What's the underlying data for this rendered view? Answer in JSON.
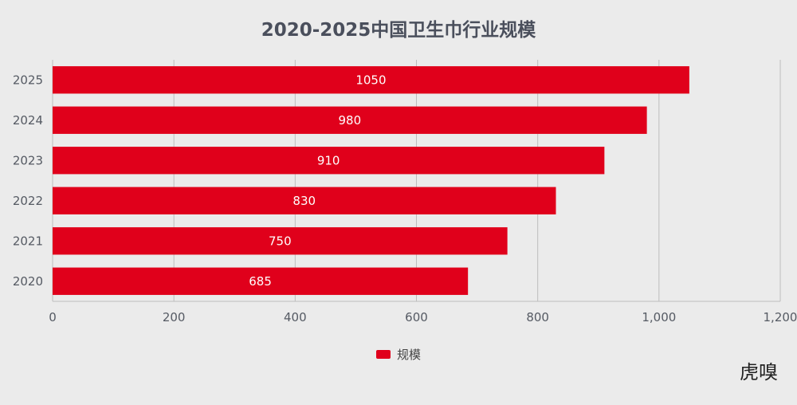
{
  "chart_data": {
    "type": "bar",
    "orientation": "horizontal",
    "title": "2020-2025中国卫生巾行业规模",
    "categories": [
      "2025",
      "2024",
      "2023",
      "2022",
      "2021",
      "2020"
    ],
    "series": [
      {
        "name": "规模",
        "values": [
          1050,
          980,
          910,
          830,
          750,
          685
        ],
        "color": "#e0001b"
      }
    ],
    "data_labels": [
      "1050",
      "980",
      "910",
      "830",
      "750",
      "685"
    ],
    "xlim": [
      0,
      1200
    ],
    "xticks": [
      0,
      200,
      400,
      600,
      800,
      1000,
      1200
    ],
    "xtick_labels": [
      "0",
      "200",
      "400",
      "600",
      "800",
      "1,000",
      "1,200"
    ],
    "xlabel": "",
    "ylabel": "",
    "grid": true,
    "legend_position": "bottom"
  },
  "watermark": "虎嗅",
  "colors": {
    "background": "#ebebeb",
    "bar": "#e0001b",
    "grid": "#bdbdbd",
    "text": "#555a63"
  }
}
